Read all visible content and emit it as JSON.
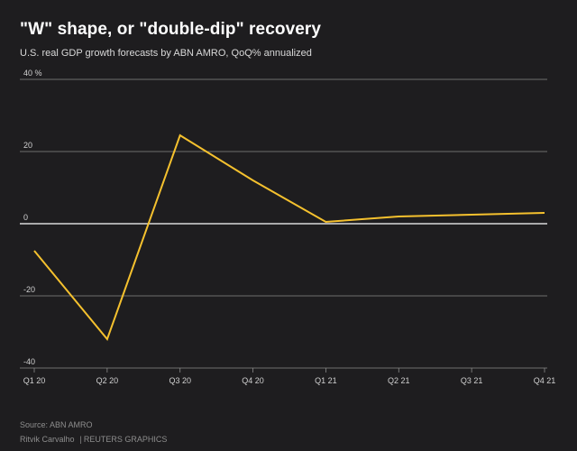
{
  "header": {
    "title": "\"W\" shape, or \"double-dip\" recovery",
    "subtitle": "U.S. real GDP growth forecasts by ABN AMRO, QoQ% annualized"
  },
  "footer": {
    "source": "Source: ABN AMRO",
    "author": "Ritvik Carvalho",
    "separator": "|",
    "outlet": "REUTERS GRAPHICS"
  },
  "colors": {
    "background": "#1e1d1f",
    "line": "#f5c12e",
    "grid": "#8a8a8a",
    "zero_line": "#ffffff"
  },
  "chart_data": {
    "type": "line",
    "title": "\"W\" shape, or \"double-dip\" recovery",
    "subtitle": "U.S. real GDP growth forecasts by ABN AMRO, QoQ% annualized",
    "xlabel": "",
    "ylabel": "",
    "categories": [
      "Q1 20",
      "Q2 20",
      "Q3 20",
      "Q4 20",
      "Q1 21",
      "Q2 21",
      "Q3 21",
      "Q4 21"
    ],
    "series": [
      {
        "values": [
          -7.5,
          -32,
          24.5,
          12,
          0.5,
          2,
          2.5,
          3
        ]
      }
    ],
    "ylim": [
      -40,
      40
    ],
    "yticks": [
      {
        "value": 40,
        "label": "40 %"
      },
      {
        "value": 20,
        "label": "20"
      },
      {
        "value": 0,
        "label": "0"
      },
      {
        "value": -20,
        "label": "-20"
      },
      {
        "value": -40,
        "label": "-40"
      }
    ],
    "grid": "horizontal",
    "legend": "none"
  }
}
